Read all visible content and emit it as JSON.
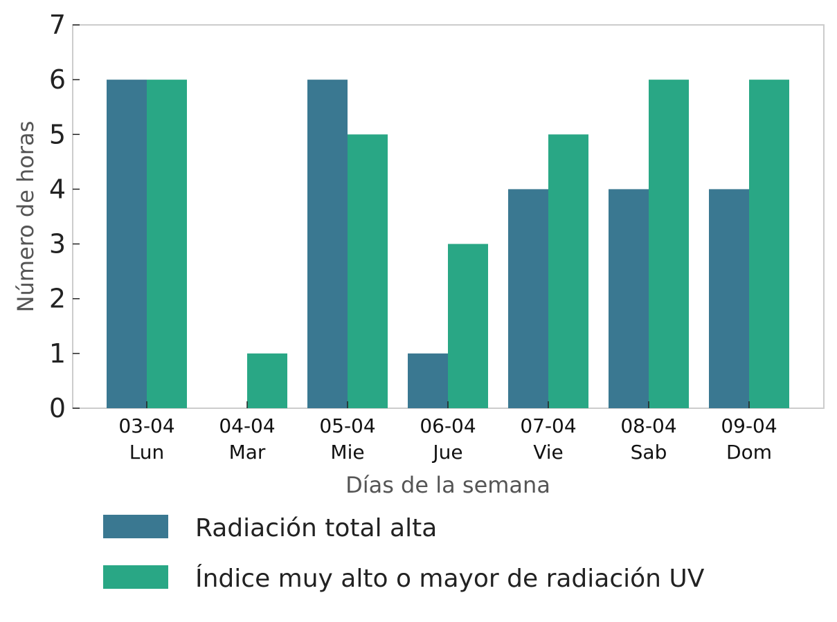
{
  "chart_data": {
    "type": "bar",
    "categories": [
      [
        "03-04",
        "Lun"
      ],
      [
        "04-04",
        "Mar"
      ],
      [
        "05-04",
        "Mie"
      ],
      [
        "06-04",
        "Jue"
      ],
      [
        "07-04",
        "Vie"
      ],
      [
        "08-04",
        "Sab"
      ],
      [
        "09-04",
        "Dom"
      ]
    ],
    "series": [
      {
        "name": "Radiación total alta",
        "color": "#3a7891",
        "values": [
          6,
          0,
          6,
          1,
          4,
          4,
          4
        ]
      },
      {
        "name": "Índice muy alto o mayor de radiación UV",
        "color": "#29a785",
        "values": [
          6,
          1,
          5,
          3,
          5,
          6,
          6
        ]
      }
    ],
    "xlabel": "Días de la semana",
    "ylabel": "Número de horas",
    "ylim": [
      0,
      7
    ],
    "yticks": [
      0,
      1,
      2,
      3,
      4,
      5,
      6,
      7
    ],
    "grid": false,
    "legend_position": "bottom"
  }
}
